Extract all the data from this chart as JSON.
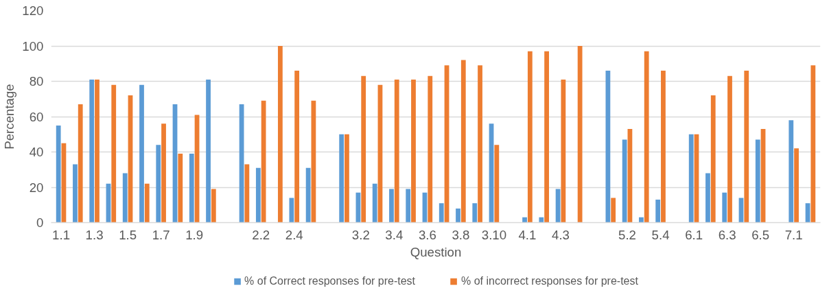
{
  "chart_data": {
    "type": "bar",
    "xlabel": "Question",
    "ylabel": "Percentage",
    "categories": [
      "1.1",
      null,
      "1.3",
      null,
      "1.5",
      null,
      "1.7",
      null,
      "1.9",
      null,
      null,
      null,
      "2.2",
      null,
      "2.4",
      null,
      null,
      null,
      "3.2",
      null,
      "3.4",
      null,
      "3.6",
      null,
      "3.8",
      null,
      "3.10",
      null,
      "4.1",
      null,
      "4.3",
      null,
      null,
      null,
      "5.2",
      null,
      "5.4",
      null,
      "6.1",
      null,
      "6.3",
      null,
      "6.5",
      null,
      "7.1",
      null
    ],
    "series": [
      {
        "name": "% of Correct responses for pre-test",
        "color": "#5b9bd5",
        "values": [
          55,
          33,
          81,
          22,
          28,
          78,
          44,
          67,
          39,
          81,
          null,
          67,
          31,
          0,
          14,
          31,
          null,
          50,
          17,
          22,
          19,
          19,
          17,
          11,
          8,
          11,
          56,
          null,
          3,
          3,
          19,
          0,
          null,
          86,
          47,
          3,
          13,
          null,
          50,
          28,
          17,
          14,
          47,
          null,
          58,
          11
        ]
      },
      {
        "name": "% of incorrect responses for pre-test",
        "color": "#ed7d31",
        "values": [
          45,
          67,
          81,
          78,
          72,
          22,
          56,
          39,
          61,
          19,
          null,
          33,
          69,
          100,
          86,
          69,
          null,
          50,
          83,
          78,
          81,
          81,
          83,
          89,
          92,
          89,
          44,
          null,
          97,
          97,
          81,
          100,
          null,
          14,
          53,
          97,
          86,
          null,
          50,
          72,
          83,
          86,
          53,
          null,
          42,
          89
        ]
      }
    ],
    "ylim": [
      0,
      120
    ],
    "yticks": [
      0,
      20,
      40,
      60,
      80,
      100,
      120
    ],
    "grid": "y",
    "legend": "bottom"
  }
}
